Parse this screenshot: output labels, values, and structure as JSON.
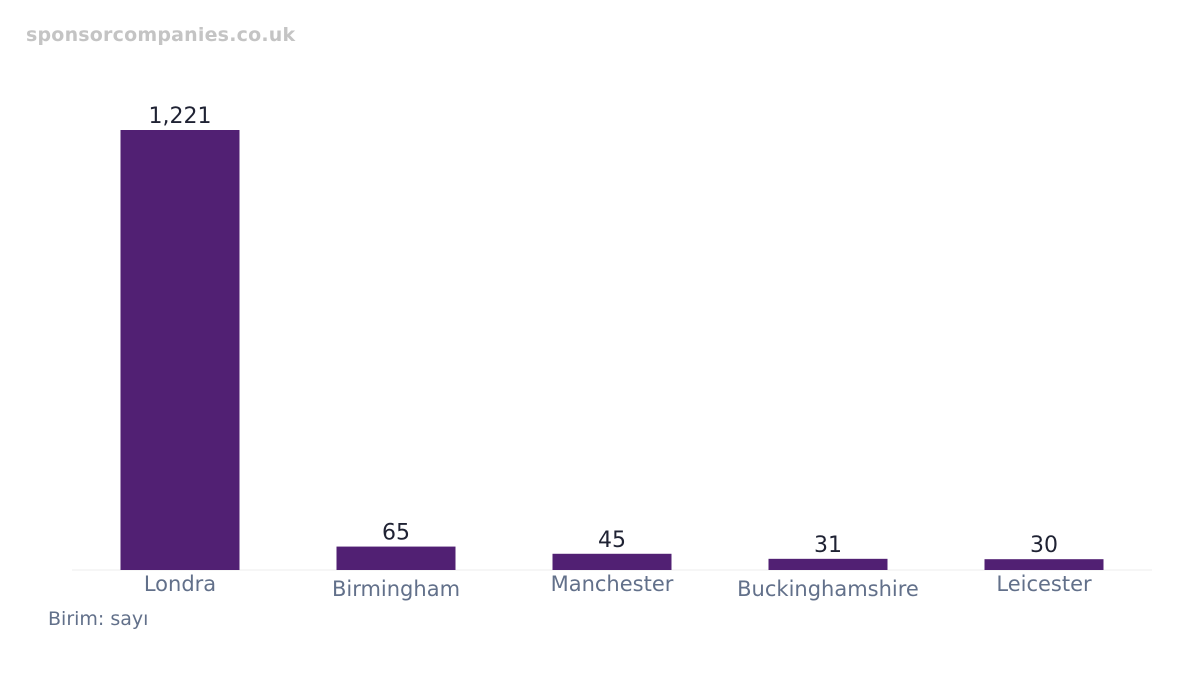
{
  "watermark": "sponsorcompanies.co.uk",
  "unit_note": "Birim: sayı",
  "colors": {
    "bar": "#512073",
    "value_text": "#1f2233",
    "category_text": "#62708a",
    "baseline": "#ececec"
  },
  "chart_data": {
    "type": "bar",
    "categories": [
      "Londra",
      "Birmingham",
      "Manchester",
      "Buckinghamshire",
      "Leicester"
    ],
    "values": [
      1221,
      65,
      45,
      31,
      30
    ],
    "value_labels": [
      "1,221",
      "65",
      "45",
      "31",
      "30"
    ],
    "title": "",
    "xlabel": "",
    "ylabel": "",
    "ylim": [
      0,
      1221
    ],
    "grid": false,
    "legend": "none"
  }
}
